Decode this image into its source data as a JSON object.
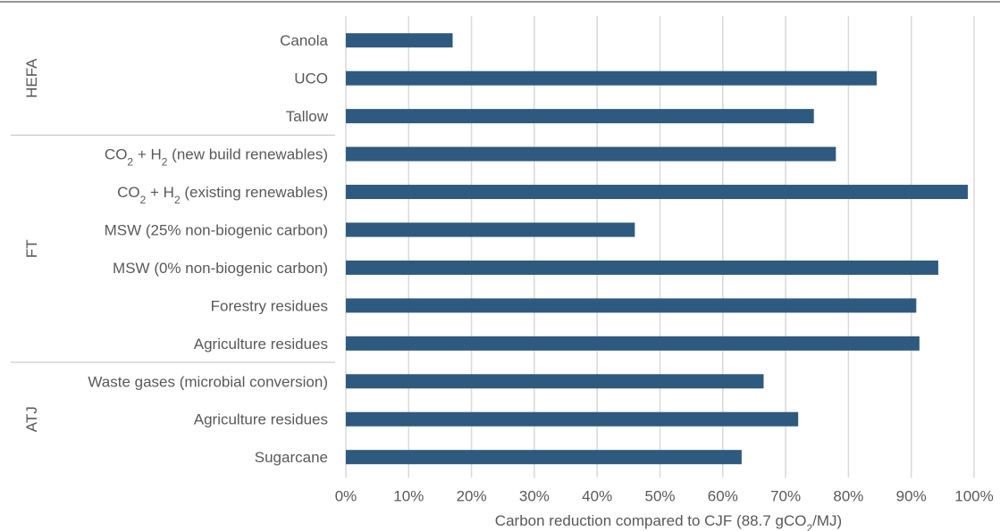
{
  "chart_data": {
    "type": "bar",
    "orientation": "horizontal",
    "bar_color": "#2e5a7f",
    "xlabel": {
      "text": "Carbon reduction compared to CJF (88.7 gCO",
      "sub": "2",
      "after": "/MJ)"
    },
    "xlim": [
      0,
      100
    ],
    "ticks": [
      "0%",
      "10%",
      "20%",
      "30%",
      "40%",
      "50%",
      "60%",
      "70%",
      "80%",
      "90%",
      "100%"
    ],
    "grid": true,
    "groups": [
      {
        "name": "HEFA",
        "items": [
          {
            "label": "Canola",
            "value": 17
          },
          {
            "label": "UCO",
            "value": 84.5
          },
          {
            "label": "Tallow",
            "value": 74.5
          }
        ]
      },
      {
        "name": "FT",
        "items": [
          {
            "label": "CO₂ + H₂ (new build renewables)",
            "value": 78
          },
          {
            "label": "CO₂ + H₂ (existing renewables)",
            "value": 99
          },
          {
            "label": "MSW (25% non-biogenic carbon)",
            "value": 46
          },
          {
            "label": "MSW (0% non-biogenic carbon)",
            "value": 94.3
          },
          {
            "label": "Forestry residues",
            "value": 90.8
          },
          {
            "label": "Agriculture residues",
            "value": 91.3
          }
        ]
      },
      {
        "name": "ATJ",
        "items": [
          {
            "label": "Waste gases (microbial conversion)",
            "value": 66.5
          },
          {
            "label": "Agriculture residues",
            "value": 72
          },
          {
            "label": "Sugarcane",
            "value": 63
          }
        ]
      }
    ]
  }
}
